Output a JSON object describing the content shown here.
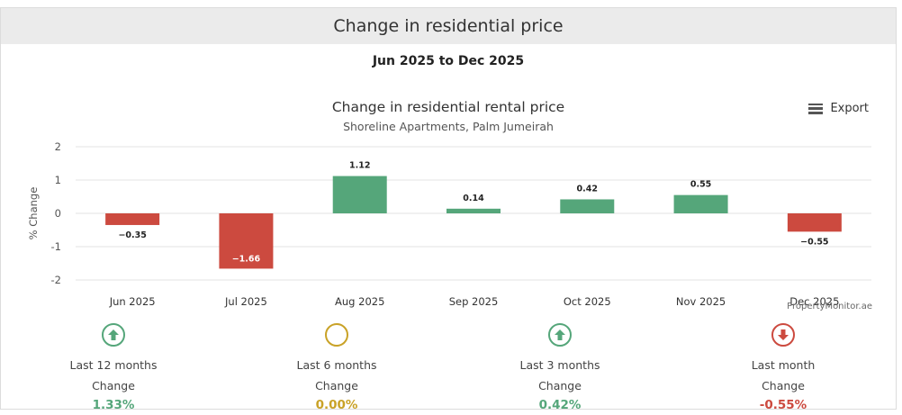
{
  "header": {
    "title": "Change in residential price"
  },
  "date_range": "Jun 2025 to Dec 2025",
  "export_label": "Export",
  "credit": "PropertyMonitor.ae",
  "colors": {
    "positive": "#55a67a",
    "negative": "#cc4a3f",
    "neutral": "#c9a227"
  },
  "chart_data": {
    "type": "bar",
    "title": "Change in residential rental price",
    "subtitle": "Shoreline Apartments, Palm Jumeirah",
    "ylabel": "% Change",
    "xlabel": "",
    "ylim": [
      -2,
      2
    ],
    "yticks": [
      2,
      1,
      0,
      -1,
      -2
    ],
    "categories": [
      "Jun 2025",
      "Jul 2025",
      "Aug 2025",
      "Sep 2025",
      "Oct 2025",
      "Nov 2025",
      "Dec 2025"
    ],
    "values": [
      -0.35,
      -1.66,
      1.12,
      0.14,
      0.42,
      0.55,
      -0.55
    ],
    "value_labels": [
      "−0.35",
      "−1.66",
      "1.12",
      "0.14",
      "0.42",
      "0.55",
      "−0.55"
    ],
    "grid": true,
    "legend": "none"
  },
  "stats": [
    {
      "period": "Last 12 months",
      "change_label": "Change",
      "value": "1.33%",
      "trend": "up",
      "icon": "up-arrow-icon"
    },
    {
      "period": "Last 6 months",
      "change_label": "Change",
      "value": "0.00%",
      "trend": "flat",
      "icon": "circle-icon"
    },
    {
      "period": "Last 3 months",
      "change_label": "Change",
      "value": "0.42%",
      "trend": "up",
      "icon": "up-arrow-icon"
    },
    {
      "period": "Last month",
      "change_label": "Change",
      "value": "-0.55%",
      "trend": "down",
      "icon": "down-arrow-icon"
    }
  ]
}
